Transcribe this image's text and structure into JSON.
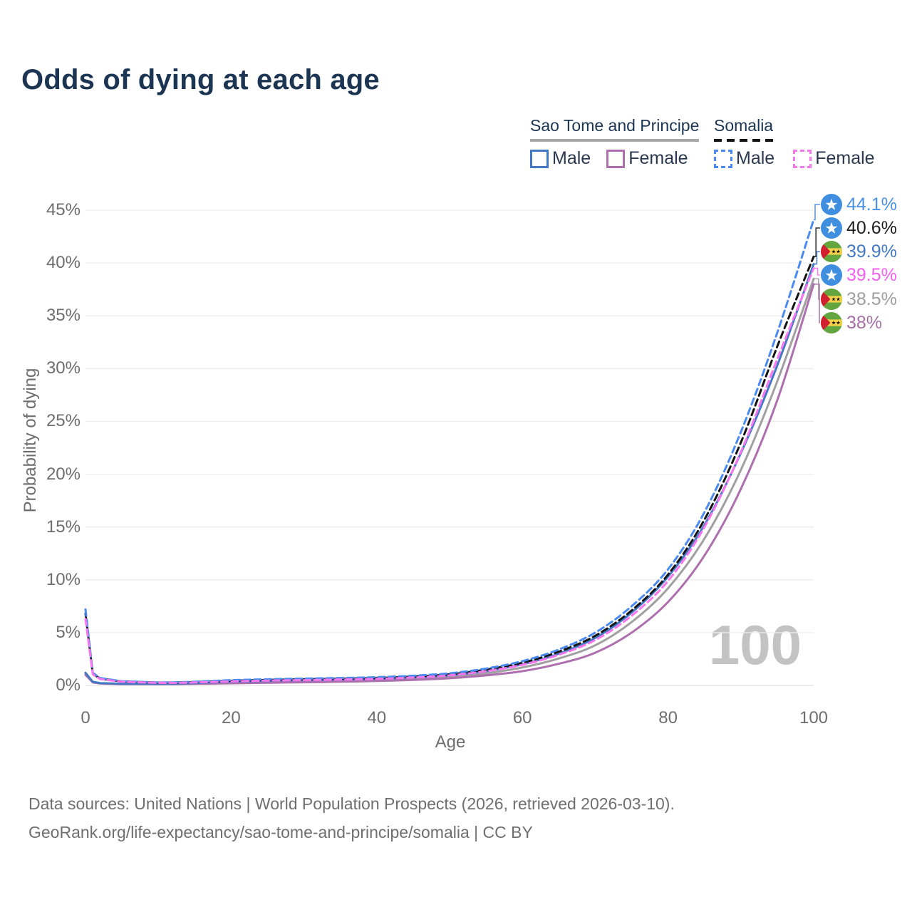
{
  "title": "Odds of dying at each age",
  "legend": {
    "groups": [
      {
        "title": "Sao Tome and Principe",
        "line_style": "solid",
        "items": [
          {
            "label": "Male",
            "color": "#4379c4"
          },
          {
            "label": "Female",
            "color": "#ad6fae"
          }
        ]
      },
      {
        "title": "Somalia",
        "line_style": "dashed",
        "items": [
          {
            "label": "Male",
            "color": "#4b8bf0"
          },
          {
            "label": "Female",
            "color": "#f776ee"
          }
        ]
      }
    ]
  },
  "axes": {
    "x_title": "Age",
    "y_title": "Probability of dying",
    "x_ticks": [
      0,
      20,
      40,
      60,
      80,
      100
    ],
    "y_ticks": [
      "0%",
      "5%",
      "10%",
      "15%",
      "20%",
      "25%",
      "30%",
      "35%",
      "40%",
      "45%"
    ]
  },
  "watermark": "100",
  "end_labels": [
    {
      "flag": "somalia",
      "series": "Somalia Male",
      "value": "44.1%",
      "num": 44.1,
      "color": "#4b8bf0"
    },
    {
      "flag": "somalia",
      "series": "Somalia Both sexes",
      "value": "40.6%",
      "num": 40.6,
      "color": "#1d1d1d"
    },
    {
      "flag": "sao-tome-and-principe",
      "series": "Sao Tome and Principe Male",
      "value": "39.9%",
      "num": 39.9,
      "color": "#4379c4"
    },
    {
      "flag": "somalia",
      "series": "Somalia Female",
      "value": "39.5%",
      "num": 39.5,
      "color": "#f776ee"
    },
    {
      "flag": "sao-tome-and-principe",
      "series": "Sao Tome and Principe Both sexes",
      "value": "38.5%",
      "num": 38.5,
      "color": "#9e9e9e"
    },
    {
      "flag": "sao-tome-and-principe",
      "series": "Sao Tome and Principe Female",
      "value": "38%",
      "num": 38.0,
      "color": "#a76fa7"
    }
  ],
  "footer": {
    "line1": "Data sources: United Nations | World Population Prospects (2026, retrieved 2026-03-10).",
    "line2": "GeoRank.org/life-expectancy/sao-tome-and-principe/somalia | CC BY"
  },
  "chart_data": {
    "type": "line",
    "title": "Odds of dying at each age",
    "xlabel": "Age",
    "ylabel": "Probability of dying",
    "x_range": [
      0,
      100
    ],
    "ylim_pct": [
      0,
      45
    ],
    "grid": "horizontal",
    "legend_position": "top-right",
    "x": [
      0,
      1,
      2,
      5,
      10,
      15,
      20,
      25,
      30,
      35,
      40,
      45,
      50,
      55,
      60,
      65,
      70,
      75,
      80,
      85,
      90,
      95,
      100
    ],
    "series": [
      {
        "name": "Sao Tome and Principe Both sexes",
        "country": "Sao Tome and Principe",
        "sex": "both",
        "style": "solid",
        "color": "#a0a0a0",
        "values": [
          1.1,
          0.32,
          0.2,
          0.15,
          0.14,
          0.19,
          0.28,
          0.34,
          0.4,
          0.45,
          0.52,
          0.64,
          0.82,
          1.15,
          1.7,
          2.55,
          3.8,
          6.0,
          9.2,
          13.9,
          20.4,
          28.8,
          38.5
        ]
      },
      {
        "name": "Sao Tome and Principe Female",
        "country": "Sao Tome and Principe",
        "sex": "female",
        "style": "solid",
        "color": "#ad6fae",
        "values": [
          1.0,
          0.28,
          0.18,
          0.13,
          0.12,
          0.15,
          0.2,
          0.25,
          0.3,
          0.35,
          0.42,
          0.52,
          0.68,
          0.95,
          1.35,
          2.05,
          3.1,
          5.0,
          7.9,
          12.3,
          18.6,
          27.0,
          38.0
        ]
      },
      {
        "name": "Sao Tome and Principe Male",
        "country": "Sao Tome and Principe",
        "sex": "male",
        "style": "solid",
        "color": "#4379c4",
        "values": [
          1.2,
          0.35,
          0.22,
          0.16,
          0.15,
          0.22,
          0.35,
          0.42,
          0.5,
          0.55,
          0.62,
          0.75,
          0.95,
          1.35,
          2.0,
          3.0,
          4.5,
          6.9,
          10.3,
          15.2,
          22.0,
          30.3,
          39.9
        ]
      },
      {
        "name": "Somalia Both sexes",
        "country": "Somalia",
        "sex": "both",
        "style": "dashed",
        "color": "#141414",
        "values": [
          6.8,
          1.12,
          0.65,
          0.38,
          0.26,
          0.32,
          0.44,
          0.52,
          0.58,
          0.63,
          0.7,
          0.84,
          1.05,
          1.5,
          2.15,
          3.2,
          4.7,
          7.1,
          10.5,
          15.7,
          23.0,
          32.1,
          40.6
        ]
      },
      {
        "name": "Somalia Male",
        "country": "Somalia",
        "sex": "male",
        "style": "dashed",
        "color": "#4b8bf0",
        "values": [
          7.2,
          1.2,
          0.7,
          0.4,
          0.28,
          0.35,
          0.5,
          0.58,
          0.65,
          0.7,
          0.78,
          0.92,
          1.15,
          1.6,
          2.3,
          3.4,
          5.0,
          7.5,
          11.0,
          16.4,
          24.0,
          33.4,
          44.1
        ]
      },
      {
        "name": "Somalia Female",
        "country": "Somalia",
        "sex": "female",
        "style": "dashed",
        "color": "#f776ee",
        "values": [
          6.3,
          1.05,
          0.6,
          0.35,
          0.24,
          0.28,
          0.38,
          0.45,
          0.5,
          0.55,
          0.62,
          0.75,
          0.95,
          1.35,
          1.95,
          2.9,
          4.3,
          6.6,
          9.9,
          15.0,
          22.1,
          30.9,
          39.5
        ]
      }
    ]
  }
}
